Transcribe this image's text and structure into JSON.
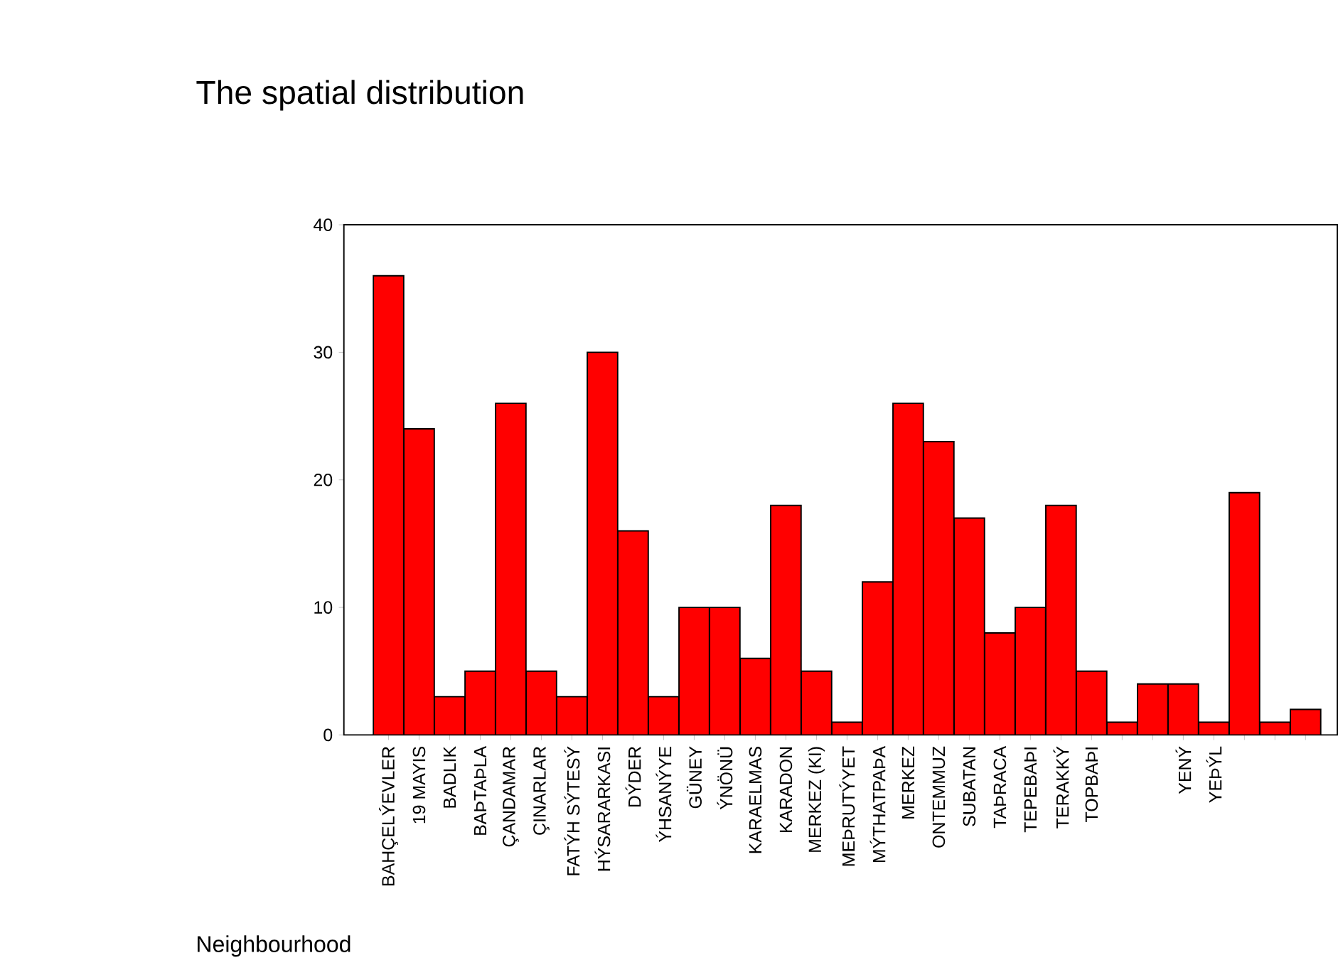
{
  "chart_data": {
    "type": "bar",
    "title": "The spatial distribution",
    "xlabel": "Neighbourhood",
    "categories": [
      "BAHÇELÝEVLER",
      "19 MAYIS",
      "BADLIK",
      "BAÞTAÞLA",
      "ÇANDAMAR",
      "ÇINARLAR",
      "FATÝH SÝTESÝ",
      "HÝSARARKASI",
      "DÝDER",
      "ÝHSANÝYE",
      "GÜNEY",
      "ÝNÖNÜ",
      "KARAELMAS",
      "KARADON",
      "MERKEZ (KI)",
      "MEÞRUTÝYET",
      "MÝTHATPAÞA",
      "MERKEZ",
      "ONTEMMUZ",
      "SUBATAN",
      "TAÞRACA",
      "TEPEBAÞI",
      "TERAKKÝ",
      "TOPBAÞI",
      null,
      null,
      "YENÝ",
      "YEÞÝL",
      null,
      null,
      null
    ],
    "values": [
      36,
      24,
      3,
      5,
      26,
      5,
      3,
      30,
      16,
      3,
      10,
      10,
      6,
      18,
      5,
      1,
      12,
      26,
      23,
      17,
      8,
      10,
      18,
      5,
      1,
      4,
      4,
      1,
      19,
      1,
      2
    ],
    "color": "#ff0000",
    "ylim": [
      0,
      40
    ],
    "yticks": [
      0,
      10,
      20,
      30,
      40
    ]
  }
}
